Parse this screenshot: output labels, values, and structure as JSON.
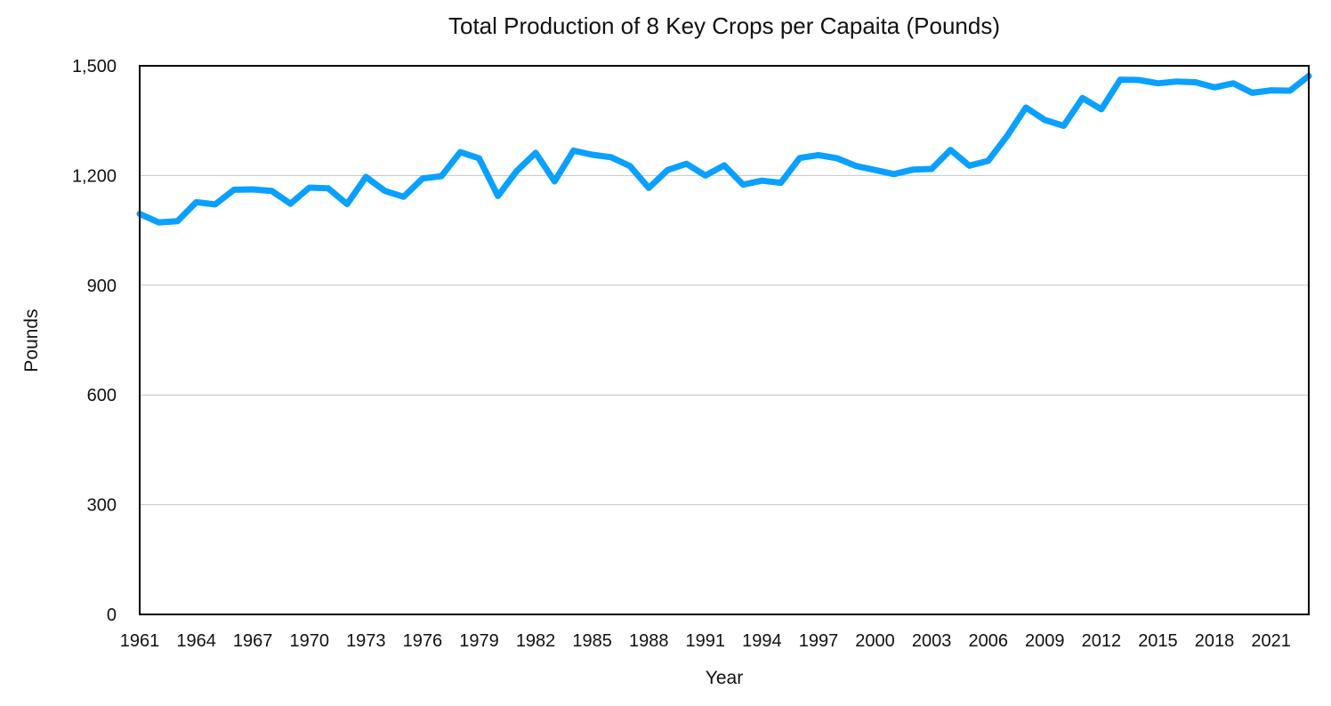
{
  "chart_data": {
    "type": "line",
    "title": "Total Production of 8 Key Crops per Capaita (Pounds)",
    "xlabel": "Year",
    "ylabel": "Pounds",
    "ylim": [
      0,
      1500
    ],
    "yticks": [
      0,
      300,
      600,
      900,
      1200,
      1500
    ],
    "ytick_labels": [
      "0",
      "300",
      "600",
      "900",
      "1,200",
      "1,500"
    ],
    "xtick_labels": [
      "1961",
      "1964",
      "1967",
      "1970",
      "1973",
      "1976",
      "1979",
      "1982",
      "1985",
      "1988",
      "1991",
      "1994",
      "1997",
      "2000",
      "2003",
      "2006",
      "2009",
      "2012",
      "2015",
      "2018",
      "2021"
    ],
    "grid": true,
    "line_color": "#0aa0ff",
    "series": [
      {
        "name": "Pounds",
        "x": [
          1961,
          1962,
          1963,
          1964,
          1965,
          1966,
          1967,
          1968,
          1969,
          1970,
          1971,
          1972,
          1973,
          1974,
          1975,
          1976,
          1977,
          1978,
          1979,
          1980,
          1981,
          1982,
          1983,
          1984,
          1985,
          1986,
          1987,
          1988,
          1989,
          1990,
          1991,
          1992,
          1993,
          1994,
          1995,
          1996,
          1997,
          1998,
          1999,
          2000,
          2001,
          2002,
          2003,
          2004,
          2005,
          2006,
          2007,
          2008,
          2009,
          2010,
          2011,
          2012,
          2013,
          2014,
          2015,
          2016,
          2017,
          2018,
          2019,
          2020,
          2021,
          2022,
          2023
        ],
        "values": [
          1095,
          1072,
          1075,
          1127,
          1121,
          1161,
          1162,
          1158,
          1123,
          1167,
          1165,
          1122,
          1196,
          1158,
          1142,
          1192,
          1198,
          1264,
          1247,
          1144,
          1213,
          1262,
          1184,
          1268,
          1257,
          1250,
          1226,
          1166,
          1215,
          1232,
          1200,
          1228,
          1175,
          1186,
          1180,
          1248,
          1256,
          1247,
          1226,
          1215,
          1204,
          1216,
          1218,
          1270,
          1227,
          1240,
          1308,
          1386,
          1352,
          1336,
          1412,
          1381,
          1462,
          1461,
          1452,
          1457,
          1455,
          1441,
          1452,
          1426,
          1433,
          1432,
          1472
        ]
      }
    ]
  }
}
